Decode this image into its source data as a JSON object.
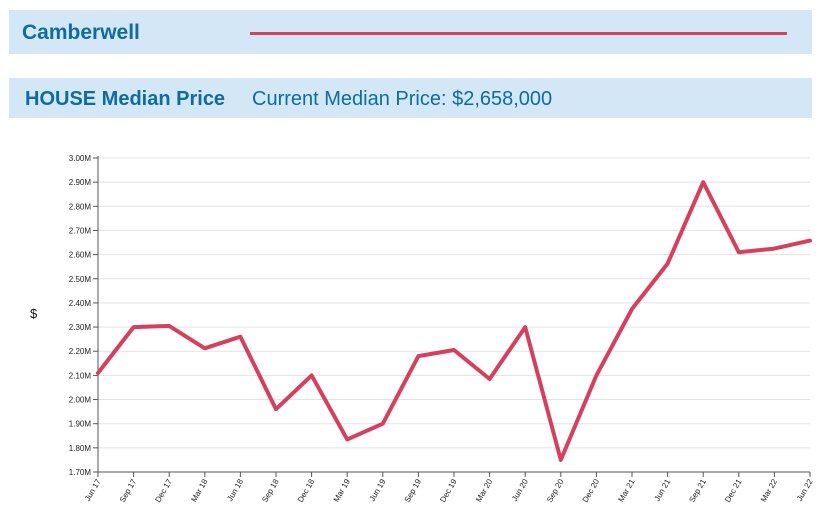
{
  "header": {
    "suburb": "Camberwell",
    "property_type_title": "HOUSE Median Price",
    "current_median": "Current Median Price: $2,658,000"
  },
  "colors": {
    "header_bg": "#d3e7f6",
    "header_text": "#0d6ca0",
    "line": "#d6405f"
  },
  "chart_data": {
    "type": "line",
    "title": "",
    "xlabel": "",
    "ylabel": "$",
    "ylim": [
      1700000,
      3000000
    ],
    "y_ticks": [
      1700000,
      1800000,
      1900000,
      2000000,
      2100000,
      2200000,
      2300000,
      2400000,
      2500000,
      2600000,
      2700000,
      2800000,
      2900000,
      3000000
    ],
    "y_tick_labels": [
      "1.70M",
      "1.80M",
      "1.90M",
      "2.00M",
      "2.10M",
      "2.20M",
      "2.30M",
      "2.40M",
      "2.50M",
      "2.60M",
      "2.70M",
      "2.80M",
      "2.90M",
      "3.00M"
    ],
    "grid": "horizontal",
    "categories": [
      "Jun 17",
      "Sep 17",
      "Dec 17",
      "Mar 18",
      "Jun 18",
      "Sep 18",
      "Dec 18",
      "Mar 19",
      "Jun 19",
      "Sep 19",
      "Dec 19",
      "Mar 20",
      "Jun 20",
      "Sep 20",
      "Dec 20",
      "Mar 21",
      "Jun 21",
      "Sep 21",
      "Dec 21",
      "Mar 22",
      "Jun 22"
    ],
    "series": [
      {
        "values": [
          2110000,
          2300000,
          2305000,
          2212000,
          2260000,
          1960000,
          2100000,
          1835000,
          1900000,
          2180000,
          2205000,
          2085000,
          2300000,
          1750000,
          2100000,
          2375000,
          2563000,
          2900000,
          2610000,
          2625000,
          2658000
        ]
      }
    ]
  }
}
